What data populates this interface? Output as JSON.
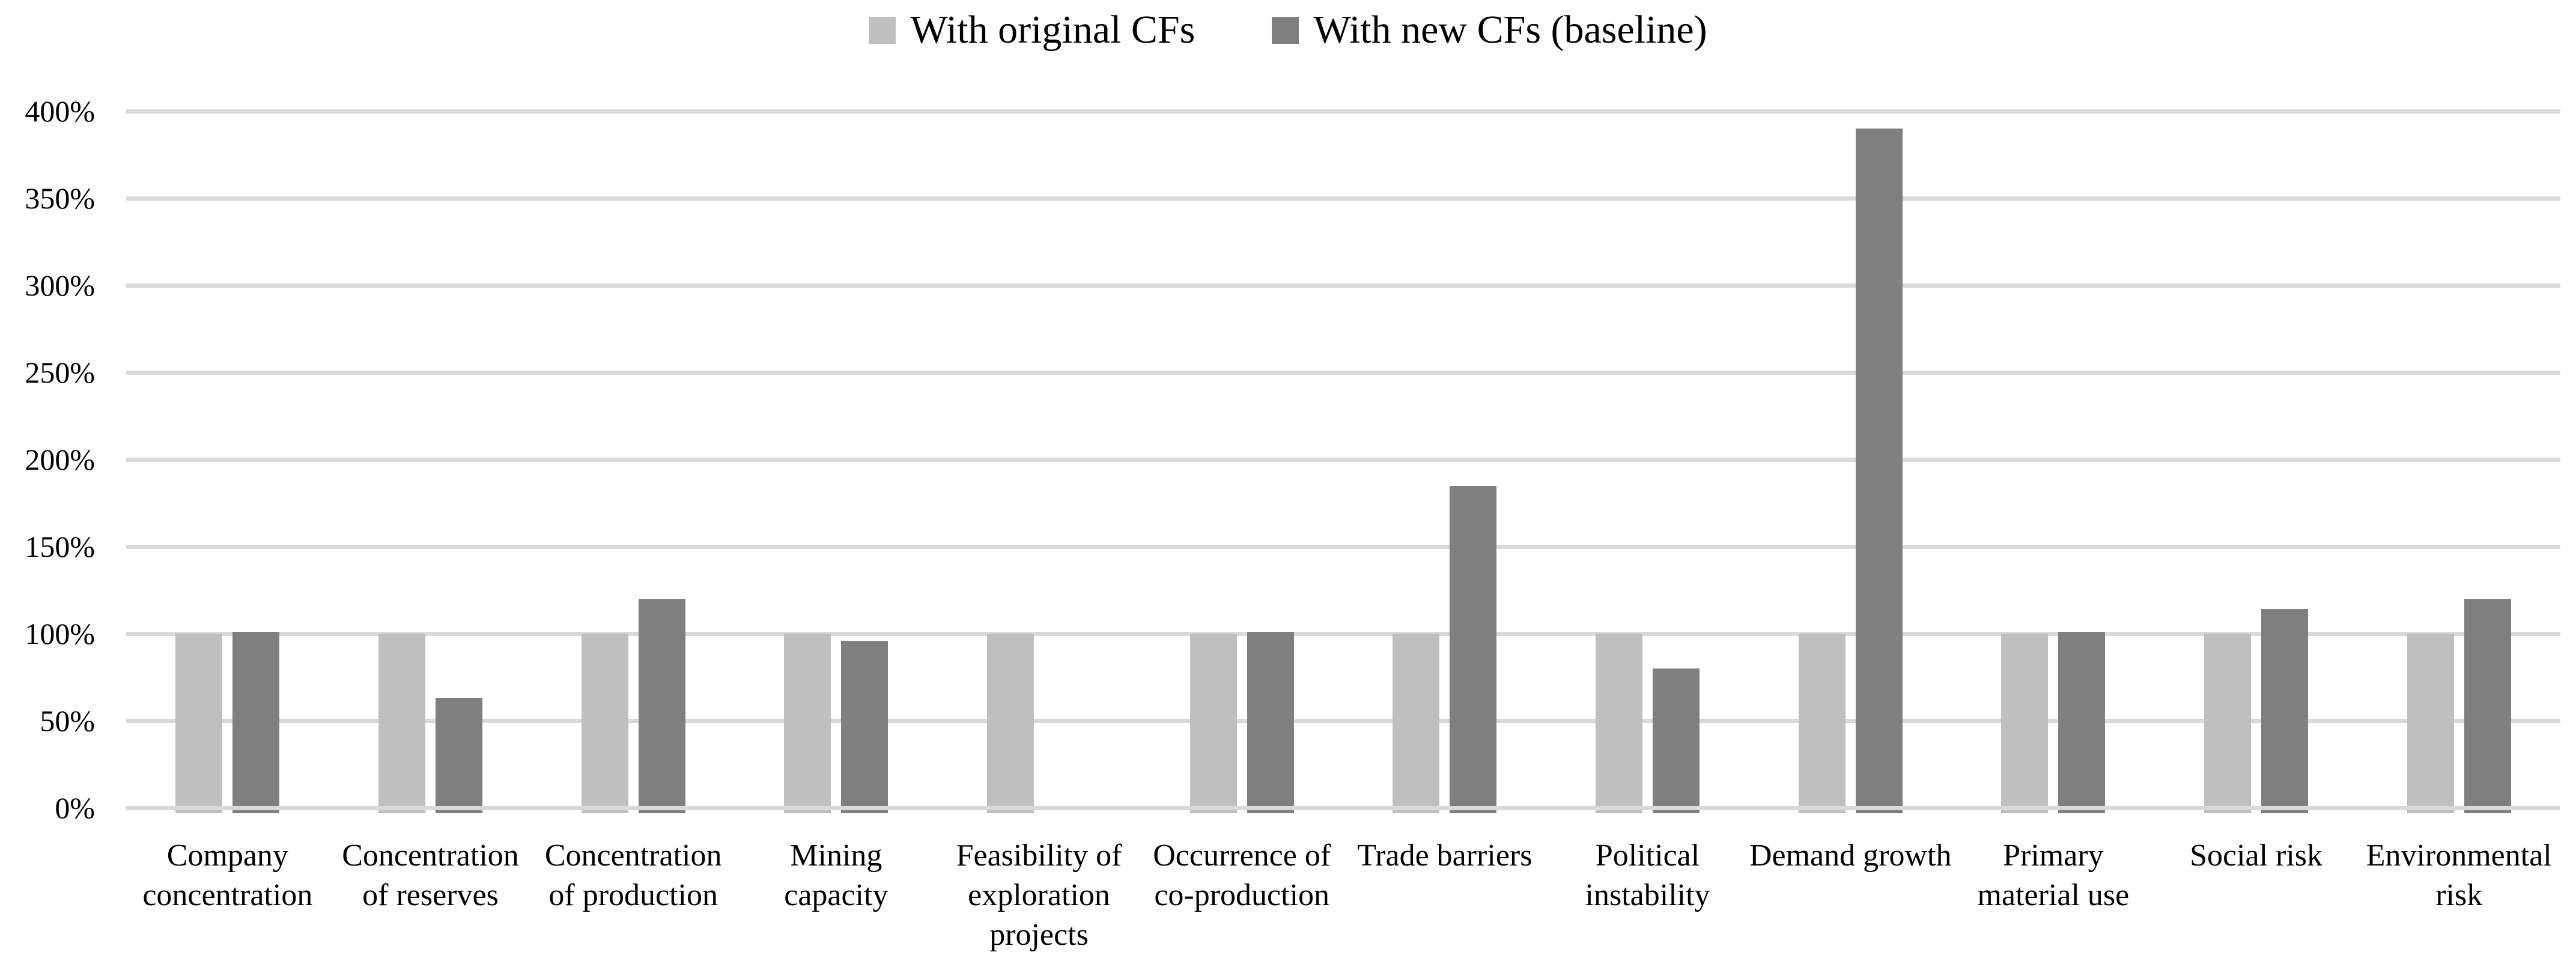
{
  "legend": [
    {
      "label": "With original CFs",
      "color": "#bfbfbf"
    },
    {
      "label": "With new CFs (baseline)",
      "color": "#7f7f7f"
    }
  ],
  "colors": {
    "background": "#ffffff",
    "gridline": "#d9d9d9",
    "text": "#000000",
    "series_original": "#bfbfbf",
    "series_new": "#7f7f7f"
  },
  "chart_data": {
    "type": "bar",
    "title": "",
    "xlabel": "",
    "ylabel": "",
    "ylim": [
      0,
      400
    ],
    "y_tick_step": 50,
    "y_ticks": [
      "0%",
      "50%",
      "100%",
      "150%",
      "200%",
      "250%",
      "300%",
      "350%",
      "400%"
    ],
    "grid": true,
    "legend_position": "top-center",
    "categories": [
      "Company concentration",
      "Concentration of reserves",
      "Concentration of production",
      "Mining capacity",
      "Feasibility of exploration projects",
      "Occurrence of co-production",
      "Trade barriers",
      "Political instability",
      "Demand growth",
      "Primary material use",
      "Social risk",
      "Environmental risk"
    ],
    "series": [
      {
        "name": "With original CFs",
        "color": "#bfbfbf",
        "values": [
          100,
          100,
          100,
          100,
          100,
          100,
          100,
          100,
          100,
          100,
          100,
          100
        ]
      },
      {
        "name": "With new CFs (baseline)",
        "color": "#7f7f7f",
        "values": [
          101,
          63,
          120,
          96,
          0,
          101,
          185,
          80,
          390,
          101,
          114,
          120
        ]
      }
    ]
  }
}
